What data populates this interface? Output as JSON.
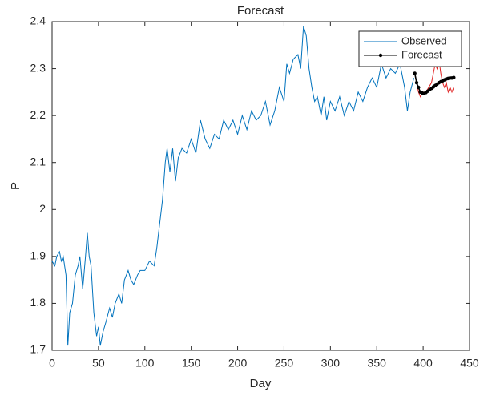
{
  "chart_data": {
    "type": "line",
    "title": "Forecast",
    "x_label": "Day",
    "y_label": "P",
    "xlim": [
      0,
      450
    ],
    "xticks": [
      0,
      50,
      100,
      150,
      200,
      250,
      300,
      350,
      400,
      450
    ],
    "ylim": [
      1.7,
      2.4
    ],
    "yticks": [
      1.7,
      1.8,
      1.9,
      2,
      2.1,
      2.2,
      2.3,
      2.4
    ],
    "legend": "northeast",
    "series": [
      {
        "name": "Observed",
        "color": "#0072bd",
        "marker": false,
        "x": [
          0,
          3,
          5,
          8,
          10,
          12,
          15,
          17,
          19,
          22,
          25,
          28,
          30,
          33,
          36,
          38,
          40,
          42,
          45,
          48,
          50,
          52,
          55,
          58,
          62,
          65,
          68,
          72,
          75,
          78,
          82,
          85,
          88,
          92,
          95,
          100,
          105,
          110,
          113,
          116,
          119,
          122,
          124,
          127,
          130,
          133,
          136,
          140,
          145,
          150,
          155,
          160,
          165,
          170,
          175,
          180,
          185,
          190,
          195,
          200,
          205,
          210,
          215,
          220,
          225,
          230,
          235,
          240,
          245,
          250,
          253,
          256,
          260,
          265,
          268,
          271,
          274,
          277,
          280,
          283,
          286,
          290,
          293,
          296,
          300,
          305,
          310,
          315,
          320,
          325,
          330,
          335,
          340,
          345,
          350,
          355,
          360,
          365,
          370,
          375,
          380,
          383,
          386,
          390
        ],
        "values": [
          1.89,
          1.88,
          1.9,
          1.91,
          1.89,
          1.9,
          1.86,
          1.71,
          1.78,
          1.8,
          1.86,
          1.88,
          1.9,
          1.83,
          1.9,
          1.95,
          1.9,
          1.88,
          1.78,
          1.73,
          1.75,
          1.71,
          1.74,
          1.76,
          1.79,
          1.77,
          1.8,
          1.82,
          1.8,
          1.85,
          1.87,
          1.85,
          1.84,
          1.86,
          1.87,
          1.87,
          1.89,
          1.88,
          1.92,
          1.97,
          2.02,
          2.1,
          2.13,
          2.08,
          2.13,
          2.06,
          2.11,
          2.13,
          2.12,
          2.15,
          2.12,
          2.19,
          2.15,
          2.13,
          2.16,
          2.15,
          2.19,
          2.17,
          2.19,
          2.16,
          2.2,
          2.17,
          2.21,
          2.19,
          2.2,
          2.23,
          2.18,
          2.21,
          2.26,
          2.23,
          2.31,
          2.29,
          2.32,
          2.33,
          2.3,
          2.39,
          2.37,
          2.3,
          2.26,
          2.23,
          2.24,
          2.2,
          2.24,
          2.19,
          2.23,
          2.21,
          2.24,
          2.2,
          2.23,
          2.21,
          2.25,
          2.23,
          2.26,
          2.28,
          2.26,
          2.31,
          2.28,
          2.3,
          2.29,
          2.31,
          2.26,
          2.21,
          2.25,
          2.28
        ]
      },
      {
        "color": "#e02020",
        "marker": false,
        "x": [
          391,
          393,
          395,
          397,
          400,
          403,
          406,
          409,
          411,
          413,
          415,
          417,
          419,
          421,
          423,
          425,
          427,
          429,
          431,
          433
        ],
        "values": [
          2.29,
          2.27,
          2.25,
          2.24,
          2.25,
          2.25,
          2.26,
          2.27,
          2.29,
          2.31,
          2.3,
          2.32,
          2.29,
          2.27,
          2.26,
          2.27,
          2.25,
          2.26,
          2.25,
          2.26
        ]
      },
      {
        "name": "Forecast",
        "color": "#000000",
        "marker": true,
        "x": [
          391,
          393,
          395,
          397,
          399,
          401,
          403,
          405,
          407,
          409,
          411,
          413,
          415,
          417,
          419,
          421,
          423,
          425,
          427,
          429,
          431,
          433
        ],
        "values": [
          2.29,
          2.27,
          2.26,
          2.25,
          2.248,
          2.247,
          2.249,
          2.252,
          2.255,
          2.258,
          2.261,
          2.264,
          2.267,
          2.27,
          2.272,
          2.274,
          2.276,
          2.278,
          2.279,
          2.28,
          2.28,
          2.281
        ]
      }
    ]
  }
}
